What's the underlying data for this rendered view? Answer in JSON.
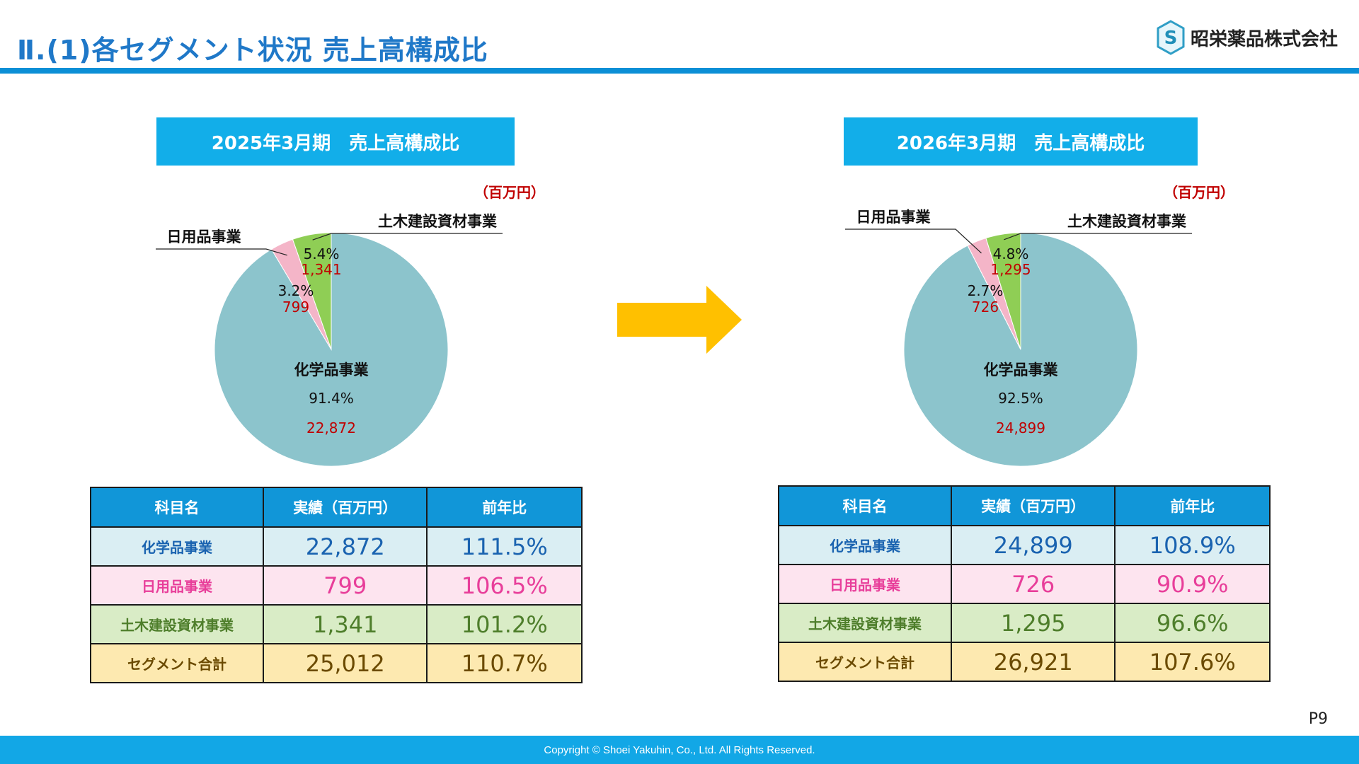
{
  "header": {
    "title": "Ⅱ.(1)各セグメント状況 売上高構成比",
    "logo_text": "昭栄薬品株式会社",
    "logo_icon": "company-s-hexagon-icon"
  },
  "colors": {
    "chem": "#8cc4cc",
    "daily": "#f4b5c8",
    "civil": "#8fce55",
    "arrow": "#ffc000",
    "accent": "#12aee9"
  },
  "chart_data": [
    {
      "type": "pie",
      "title": "2025年3月期　売上高構成比",
      "unit": "（百万円）",
      "slices": [
        {
          "label": "化学品事業",
          "percent": "91.4%",
          "value": 22872,
          "value_text": "22,872"
        },
        {
          "label": "日用品事業",
          "percent": "3.2%",
          "value": 799,
          "value_text": "799"
        },
        {
          "label": "土木建設資材事業",
          "percent": "5.4%",
          "value": 1341,
          "value_text": "1,341"
        }
      ]
    },
    {
      "type": "pie",
      "title": "2026年3月期　売上高構成比",
      "unit": "（百万円）",
      "slices": [
        {
          "label": "化学品事業",
          "percent": "92.5%",
          "value": 24899,
          "value_text": "24,899"
        },
        {
          "label": "日用品事業",
          "percent": "2.7%",
          "value": 726,
          "value_text": "726"
        },
        {
          "label": "土木建設資材事業",
          "percent": "4.8%",
          "value": 1295,
          "value_text": "1,295"
        }
      ]
    }
  ],
  "tables": [
    {
      "headers": [
        "科目名",
        "実績（百万円）",
        "前年比"
      ],
      "rows": [
        [
          "化学品事業",
          "22,872",
          "111.5%"
        ],
        [
          "日用品事業",
          "799",
          "106.5%"
        ],
        [
          "土木建設資材事業",
          "1,341",
          "101.2%"
        ],
        [
          "セグメント合計",
          "25,012",
          "110.7%"
        ]
      ]
    },
    {
      "headers": [
        "科目名",
        "実績（百万円）",
        "前年比"
      ],
      "rows": [
        [
          "化学品事業",
          "24,899",
          "108.9%"
        ],
        [
          "日用品事業",
          "726",
          "90.9%"
        ],
        [
          "土木建設資材事業",
          "1,295",
          "96.6%"
        ],
        [
          "セグメント合計",
          "26,921",
          "107.6%"
        ]
      ]
    }
  ],
  "page_number": "P9",
  "footer": "Copyright © Shoei Yakuhin, Co., Ltd. All Rights Reserved."
}
